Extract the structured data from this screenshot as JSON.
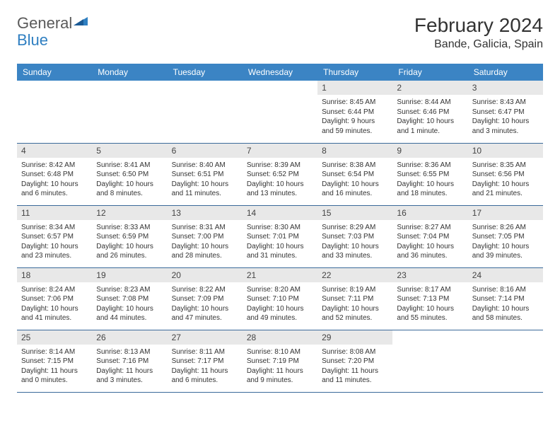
{
  "brand": {
    "part1": "General",
    "part2": "Blue"
  },
  "title": "February 2024",
  "location": "Bande, Galicia, Spain",
  "colors": {
    "header_bg": "#3b84c4",
    "header_text": "#ffffff",
    "daynum_bg": "#e8e8e8",
    "border": "#3b6a9a",
    "text": "#333333",
    "logo_gray": "#5a5a5a",
    "logo_blue": "#2f7fc1"
  },
  "day_headers": [
    "Sunday",
    "Monday",
    "Tuesday",
    "Wednesday",
    "Thursday",
    "Friday",
    "Saturday"
  ],
  "weeks": [
    [
      null,
      null,
      null,
      null,
      {
        "n": "1",
        "sr": "Sunrise: 8:45 AM",
        "ss": "Sunset: 6:44 PM",
        "dl1": "Daylight: 9 hours",
        "dl2": "and 59 minutes."
      },
      {
        "n": "2",
        "sr": "Sunrise: 8:44 AM",
        "ss": "Sunset: 6:46 PM",
        "dl1": "Daylight: 10 hours",
        "dl2": "and 1 minute."
      },
      {
        "n": "3",
        "sr": "Sunrise: 8:43 AM",
        "ss": "Sunset: 6:47 PM",
        "dl1": "Daylight: 10 hours",
        "dl2": "and 3 minutes."
      }
    ],
    [
      {
        "n": "4",
        "sr": "Sunrise: 8:42 AM",
        "ss": "Sunset: 6:48 PM",
        "dl1": "Daylight: 10 hours",
        "dl2": "and 6 minutes."
      },
      {
        "n": "5",
        "sr": "Sunrise: 8:41 AM",
        "ss": "Sunset: 6:50 PM",
        "dl1": "Daylight: 10 hours",
        "dl2": "and 8 minutes."
      },
      {
        "n": "6",
        "sr": "Sunrise: 8:40 AM",
        "ss": "Sunset: 6:51 PM",
        "dl1": "Daylight: 10 hours",
        "dl2": "and 11 minutes."
      },
      {
        "n": "7",
        "sr": "Sunrise: 8:39 AM",
        "ss": "Sunset: 6:52 PM",
        "dl1": "Daylight: 10 hours",
        "dl2": "and 13 minutes."
      },
      {
        "n": "8",
        "sr": "Sunrise: 8:38 AM",
        "ss": "Sunset: 6:54 PM",
        "dl1": "Daylight: 10 hours",
        "dl2": "and 16 minutes."
      },
      {
        "n": "9",
        "sr": "Sunrise: 8:36 AM",
        "ss": "Sunset: 6:55 PM",
        "dl1": "Daylight: 10 hours",
        "dl2": "and 18 minutes."
      },
      {
        "n": "10",
        "sr": "Sunrise: 8:35 AM",
        "ss": "Sunset: 6:56 PM",
        "dl1": "Daylight: 10 hours",
        "dl2": "and 21 minutes."
      }
    ],
    [
      {
        "n": "11",
        "sr": "Sunrise: 8:34 AM",
        "ss": "Sunset: 6:57 PM",
        "dl1": "Daylight: 10 hours",
        "dl2": "and 23 minutes."
      },
      {
        "n": "12",
        "sr": "Sunrise: 8:33 AM",
        "ss": "Sunset: 6:59 PM",
        "dl1": "Daylight: 10 hours",
        "dl2": "and 26 minutes."
      },
      {
        "n": "13",
        "sr": "Sunrise: 8:31 AM",
        "ss": "Sunset: 7:00 PM",
        "dl1": "Daylight: 10 hours",
        "dl2": "and 28 minutes."
      },
      {
        "n": "14",
        "sr": "Sunrise: 8:30 AM",
        "ss": "Sunset: 7:01 PM",
        "dl1": "Daylight: 10 hours",
        "dl2": "and 31 minutes."
      },
      {
        "n": "15",
        "sr": "Sunrise: 8:29 AM",
        "ss": "Sunset: 7:03 PM",
        "dl1": "Daylight: 10 hours",
        "dl2": "and 33 minutes."
      },
      {
        "n": "16",
        "sr": "Sunrise: 8:27 AM",
        "ss": "Sunset: 7:04 PM",
        "dl1": "Daylight: 10 hours",
        "dl2": "and 36 minutes."
      },
      {
        "n": "17",
        "sr": "Sunrise: 8:26 AM",
        "ss": "Sunset: 7:05 PM",
        "dl1": "Daylight: 10 hours",
        "dl2": "and 39 minutes."
      }
    ],
    [
      {
        "n": "18",
        "sr": "Sunrise: 8:24 AM",
        "ss": "Sunset: 7:06 PM",
        "dl1": "Daylight: 10 hours",
        "dl2": "and 41 minutes."
      },
      {
        "n": "19",
        "sr": "Sunrise: 8:23 AM",
        "ss": "Sunset: 7:08 PM",
        "dl1": "Daylight: 10 hours",
        "dl2": "and 44 minutes."
      },
      {
        "n": "20",
        "sr": "Sunrise: 8:22 AM",
        "ss": "Sunset: 7:09 PM",
        "dl1": "Daylight: 10 hours",
        "dl2": "and 47 minutes."
      },
      {
        "n": "21",
        "sr": "Sunrise: 8:20 AM",
        "ss": "Sunset: 7:10 PM",
        "dl1": "Daylight: 10 hours",
        "dl2": "and 49 minutes."
      },
      {
        "n": "22",
        "sr": "Sunrise: 8:19 AM",
        "ss": "Sunset: 7:11 PM",
        "dl1": "Daylight: 10 hours",
        "dl2": "and 52 minutes."
      },
      {
        "n": "23",
        "sr": "Sunrise: 8:17 AM",
        "ss": "Sunset: 7:13 PM",
        "dl1": "Daylight: 10 hours",
        "dl2": "and 55 minutes."
      },
      {
        "n": "24",
        "sr": "Sunrise: 8:16 AM",
        "ss": "Sunset: 7:14 PM",
        "dl1": "Daylight: 10 hours",
        "dl2": "and 58 minutes."
      }
    ],
    [
      {
        "n": "25",
        "sr": "Sunrise: 8:14 AM",
        "ss": "Sunset: 7:15 PM",
        "dl1": "Daylight: 11 hours",
        "dl2": "and 0 minutes."
      },
      {
        "n": "26",
        "sr": "Sunrise: 8:13 AM",
        "ss": "Sunset: 7:16 PM",
        "dl1": "Daylight: 11 hours",
        "dl2": "and 3 minutes."
      },
      {
        "n": "27",
        "sr": "Sunrise: 8:11 AM",
        "ss": "Sunset: 7:17 PM",
        "dl1": "Daylight: 11 hours",
        "dl2": "and 6 minutes."
      },
      {
        "n": "28",
        "sr": "Sunrise: 8:10 AM",
        "ss": "Sunset: 7:19 PM",
        "dl1": "Daylight: 11 hours",
        "dl2": "and 9 minutes."
      },
      {
        "n": "29",
        "sr": "Sunrise: 8:08 AM",
        "ss": "Sunset: 7:20 PM",
        "dl1": "Daylight: 11 hours",
        "dl2": "and 11 minutes."
      },
      null,
      null
    ]
  ]
}
